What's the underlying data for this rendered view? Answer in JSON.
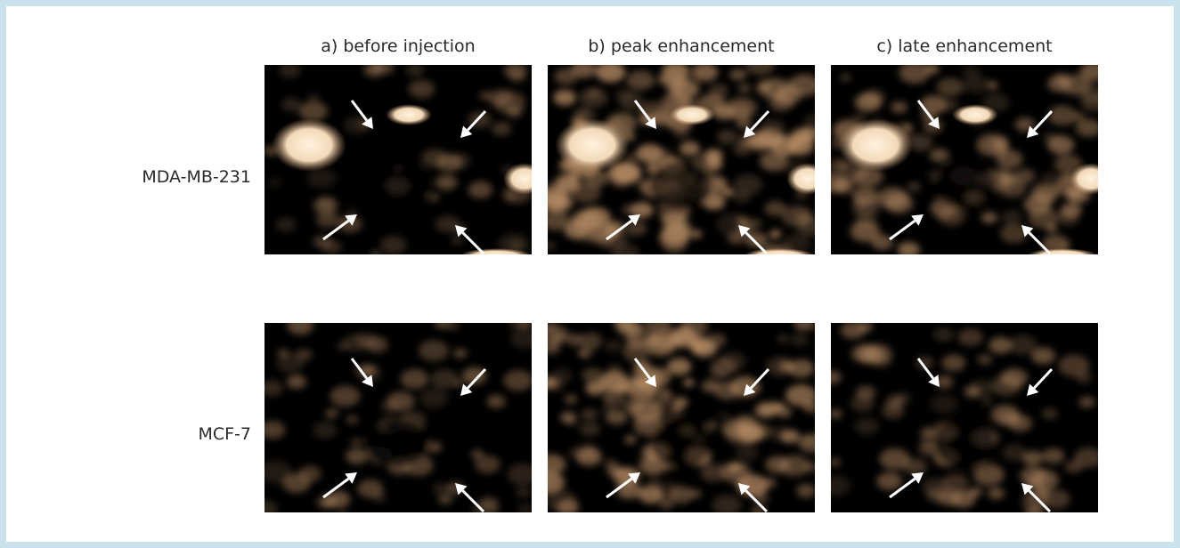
{
  "columns": [
    {
      "label": "a) before injection"
    },
    {
      "label": "b) peak enhancement"
    },
    {
      "label": "c) late enhancement"
    }
  ],
  "rows": [
    {
      "label": "MDA-MB-231"
    },
    {
      "label": "MCF-7"
    }
  ],
  "colors": {
    "frame_border": "#c9e2ec",
    "panel_background": "#000000",
    "signal": "#b58a63",
    "bright_signal": "#fff3e0",
    "arrow": "#ffffff"
  },
  "panels": [
    {
      "row": 0,
      "col": 0,
      "enhancement": 0.05,
      "bright_spots": true
    },
    {
      "row": 0,
      "col": 1,
      "enhancement": 0.75,
      "bright_spots": true
    },
    {
      "row": 0,
      "col": 2,
      "enhancement": 0.35,
      "bright_spots": true
    },
    {
      "row": 1,
      "col": 0,
      "enhancement": 0.18,
      "bright_spots": false
    },
    {
      "row": 1,
      "col": 1,
      "enhancement": 0.7,
      "bright_spots": false
    },
    {
      "row": 1,
      "col": 2,
      "enhancement": 0.22,
      "bright_spots": false
    }
  ]
}
